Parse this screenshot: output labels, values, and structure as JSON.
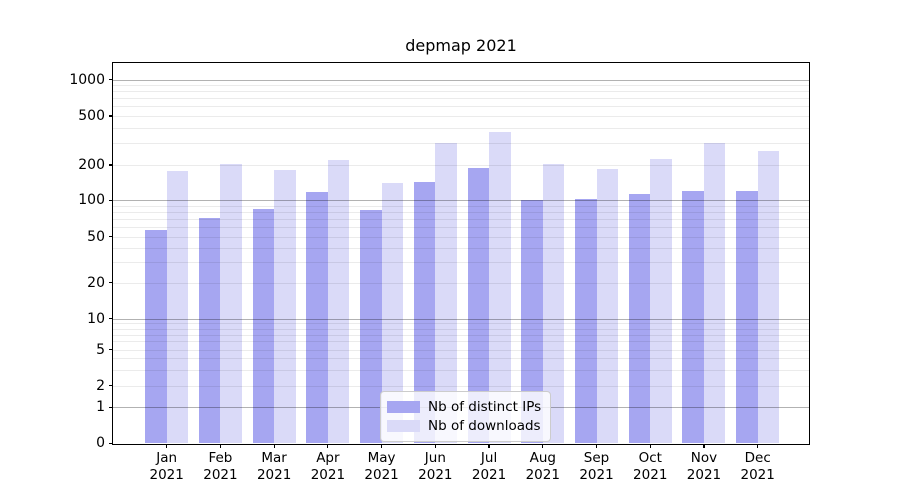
{
  "title": "depmap 2021",
  "chart_data": {
    "type": "bar",
    "title": "depmap 2021",
    "categories": [
      "Jan 2021",
      "Feb 2021",
      "Mar 2021",
      "Apr 2021",
      "May 2021",
      "Jun 2021",
      "Jul 2021",
      "Aug 2021",
      "Sep 2021",
      "Oct 2021",
      "Nov 2021",
      "Dec 2021"
    ],
    "series": [
      {
        "name": "Nb of distinct IPs",
        "color": "#a6a6f1",
        "values": [
          57,
          72,
          85,
          118,
          83,
          142,
          190,
          100,
          102,
          113,
          120,
          120
        ]
      },
      {
        "name": "Nb of downloads",
        "color": "#dadaf8",
        "values": [
          178,
          205,
          180,
          220,
          140,
          300,
          370,
          205,
          185,
          225,
          300,
          260
        ]
      }
    ],
    "xlabel": "",
    "ylabel": "",
    "yscale": "symlog",
    "y_ticks": [
      1000,
      500,
      200,
      100,
      50,
      20,
      10,
      5,
      2,
      1,
      0
    ],
    "ylim": [
      0,
      1400
    ],
    "grid": true,
    "legend_position": "lower center"
  },
  "colors": {
    "bar_ips": "#a6a6f1",
    "bar_downloads": "#dadaf8",
    "grid_major": "#b3b3b3",
    "grid_minor": "#ececec",
    "spine": "#000000",
    "background": "#ffffff"
  }
}
